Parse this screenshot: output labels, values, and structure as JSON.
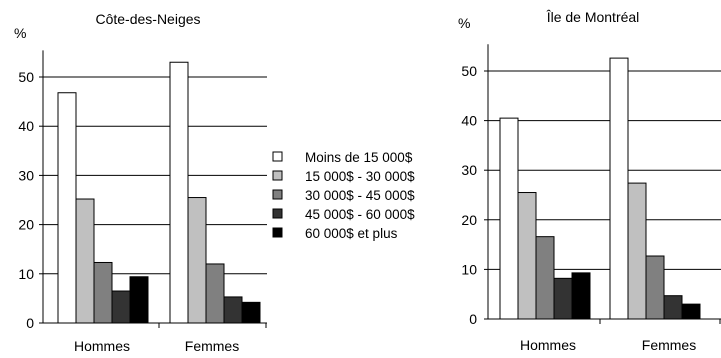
{
  "colors": {
    "moins_15000": "#ffffff",
    "15000_30000": "#c0c0c0",
    "30000_45000": "#808080",
    "45000_60000": "#333333",
    "60000_plus": "#000000",
    "axis": "#000000",
    "grid": "#000000"
  },
  "legend": {
    "placement": "center",
    "items": [
      {
        "label": "Moins de 15 000$",
        "color": "#ffffff"
      },
      {
        "label": "15 000$ - 30 000$",
        "color": "#c0c0c0"
      },
      {
        "label": "30 000$ - 45 000$",
        "color": "#808080"
      },
      {
        "label": "45 000$ - 60 000$",
        "color": "#333333"
      },
      {
        "label": "60 000$ et plus",
        "color": "#000000"
      }
    ]
  },
  "chart_data": [
    {
      "type": "bar",
      "title": "Côte-des-Neiges",
      "ylabel": "%",
      "xlabel": "",
      "ylim": [
        0,
        55
      ],
      "yticks": [
        0,
        10,
        20,
        30,
        40,
        50
      ],
      "grid": true,
      "categories": [
        "Hommes",
        "Femmes"
      ],
      "series": [
        {
          "name": "Moins de 15 000$",
          "values": [
            46.8,
            53.0
          ]
        },
        {
          "name": "15 000$ - 30 000$",
          "values": [
            25.2,
            25.5
          ]
        },
        {
          "name": "30 000$ - 45 000$",
          "values": [
            12.3,
            12.0
          ]
        },
        {
          "name": "45 000$ - 60 000$",
          "values": [
            6.5,
            5.3
          ]
        },
        {
          "name": "60 000$ et plus",
          "values": [
            9.4,
            4.2
          ]
        }
      ]
    },
    {
      "type": "bar",
      "title": "Île de Montréal",
      "ylabel": "%",
      "xlabel": "",
      "ylim": [
        0,
        55
      ],
      "yticks": [
        0,
        10,
        20,
        30,
        40,
        50
      ],
      "grid": true,
      "categories": [
        "Hommes",
        "Femmes"
      ],
      "series": [
        {
          "name": "Moins de 15 000$",
          "values": [
            40.5,
            52.6
          ]
        },
        {
          "name": "15 000$ - 30 000$",
          "values": [
            25.5,
            27.4
          ]
        },
        {
          "name": "30 000$ - 45 000$",
          "values": [
            16.6,
            12.7
          ]
        },
        {
          "name": "45 000$ - 60 000$",
          "values": [
            8.2,
            4.7
          ]
        },
        {
          "name": "60 000$ et plus",
          "values": [
            9.3,
            3.0
          ]
        }
      ]
    }
  ]
}
